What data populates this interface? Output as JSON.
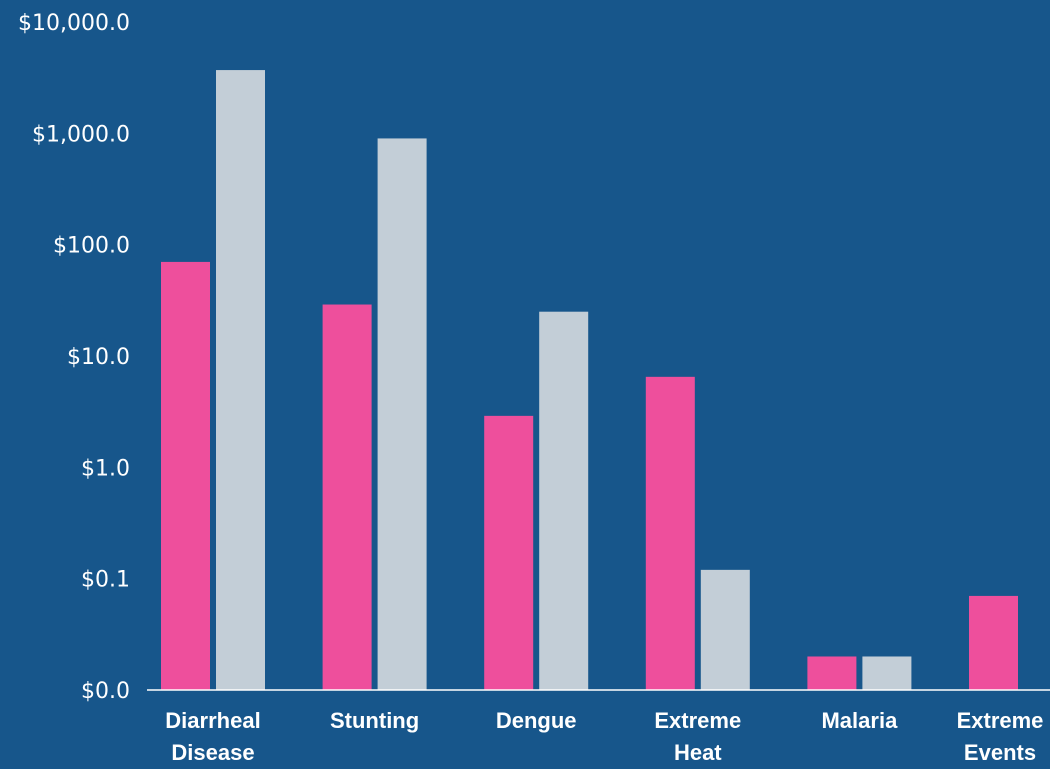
{
  "chart_data": {
    "type": "bar",
    "y_scale": "log",
    "ylim": [
      0.01,
      10000
    ],
    "y_ticks": [
      {
        "value": 10000,
        "label": "$10,000.0"
      },
      {
        "value": 1000,
        "label": "$1,000.0"
      },
      {
        "value": 100,
        "label": "$100.0"
      },
      {
        "value": 10,
        "label": "$10.0"
      },
      {
        "value": 1,
        "label": "$1.0"
      },
      {
        "value": 0.1,
        "label": "$0.1"
      },
      {
        "value": 0.01,
        "label": "$0.0"
      }
    ],
    "categories": [
      [
        "Diarrheal",
        "Disease"
      ],
      [
        "Stunting"
      ],
      [
        "Dengue"
      ],
      [
        "Extreme",
        "Heat"
      ],
      [
        "Malaria"
      ],
      [
        "Extreme",
        "Events"
      ]
    ],
    "series": [
      {
        "color": "#ee4f9c",
        "values": [
          70,
          29,
          2.9,
          6.5,
          0.02,
          0.07
        ]
      },
      {
        "color": "#c3ced7",
        "values": [
          3700,
          900,
          25,
          0.12,
          0.02,
          null
        ]
      }
    ],
    "grid": false,
    "legend": "none"
  },
  "colors": {
    "background": "#17568b",
    "text": "#ffffff",
    "axis": "#ffffff"
  }
}
